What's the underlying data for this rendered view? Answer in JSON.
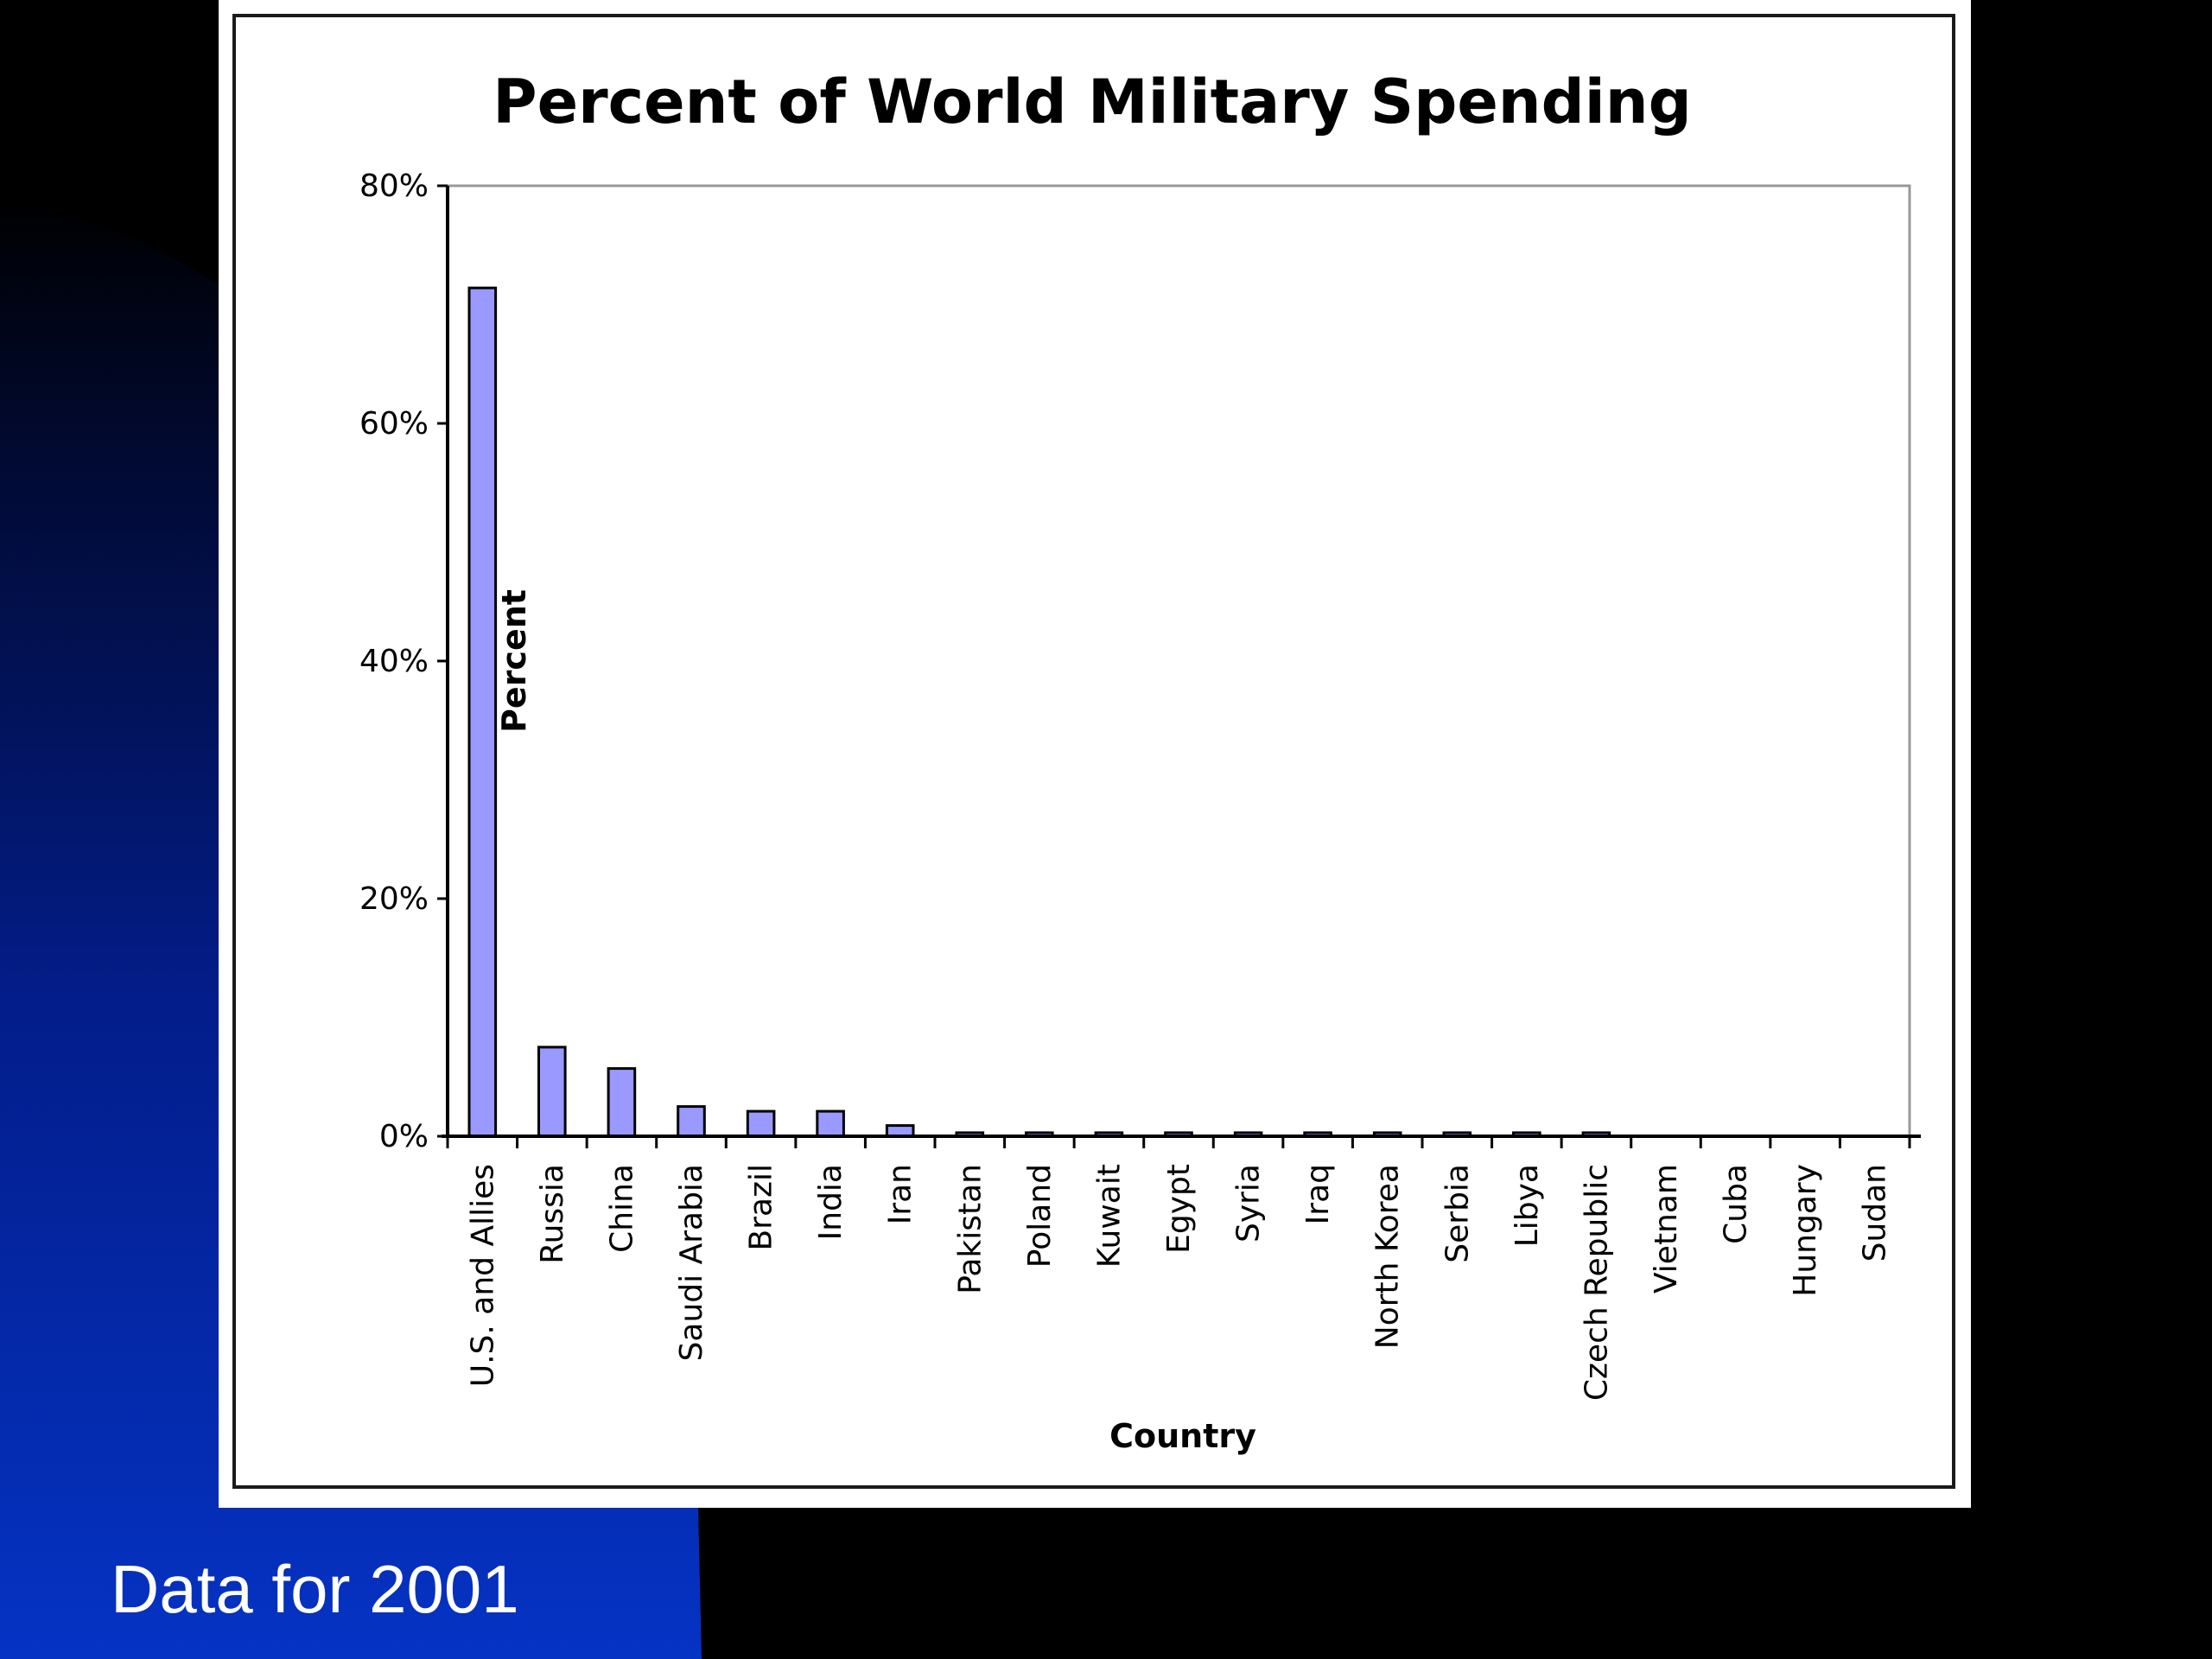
{
  "slide": {
    "caption": "Data for 2001",
    "colors": {
      "background_dark": "#000000",
      "background_blue": "#0533c4",
      "panel": "#ffffff"
    }
  },
  "chart_data": {
    "type": "bar",
    "title": "Percent of World Military Spending",
    "xlabel": "Country",
    "ylabel": "Percent",
    "ylim": [
      0,
      80
    ],
    "yticks": [
      0,
      20,
      40,
      60,
      80
    ],
    "ytick_labels": [
      "0%",
      "20%",
      "40%",
      "60%",
      "80%"
    ],
    "grid": false,
    "legend": "none",
    "bar_color": "#9999ff",
    "categories": [
      "U.S. and Allies",
      "Russia",
      "China",
      "Saudi Arabia",
      "Brazil",
      "India",
      "Iran",
      "Pakistan",
      "Poland",
      "Kuwait",
      "Egypt",
      "Syria",
      "Iraq",
      "North Korea",
      "Serbia",
      "Libya",
      "Czech Republic",
      "Vietnam",
      "Cuba",
      "Hungary",
      "Sudan"
    ],
    "values": [
      71.4,
      7.5,
      5.7,
      2.5,
      2.1,
      2.1,
      0.9,
      0.3,
      0.3,
      0.3,
      0.3,
      0.3,
      0.3,
      0.3,
      0.3,
      0.3,
      0.3,
      0,
      0,
      0,
      0
    ]
  }
}
